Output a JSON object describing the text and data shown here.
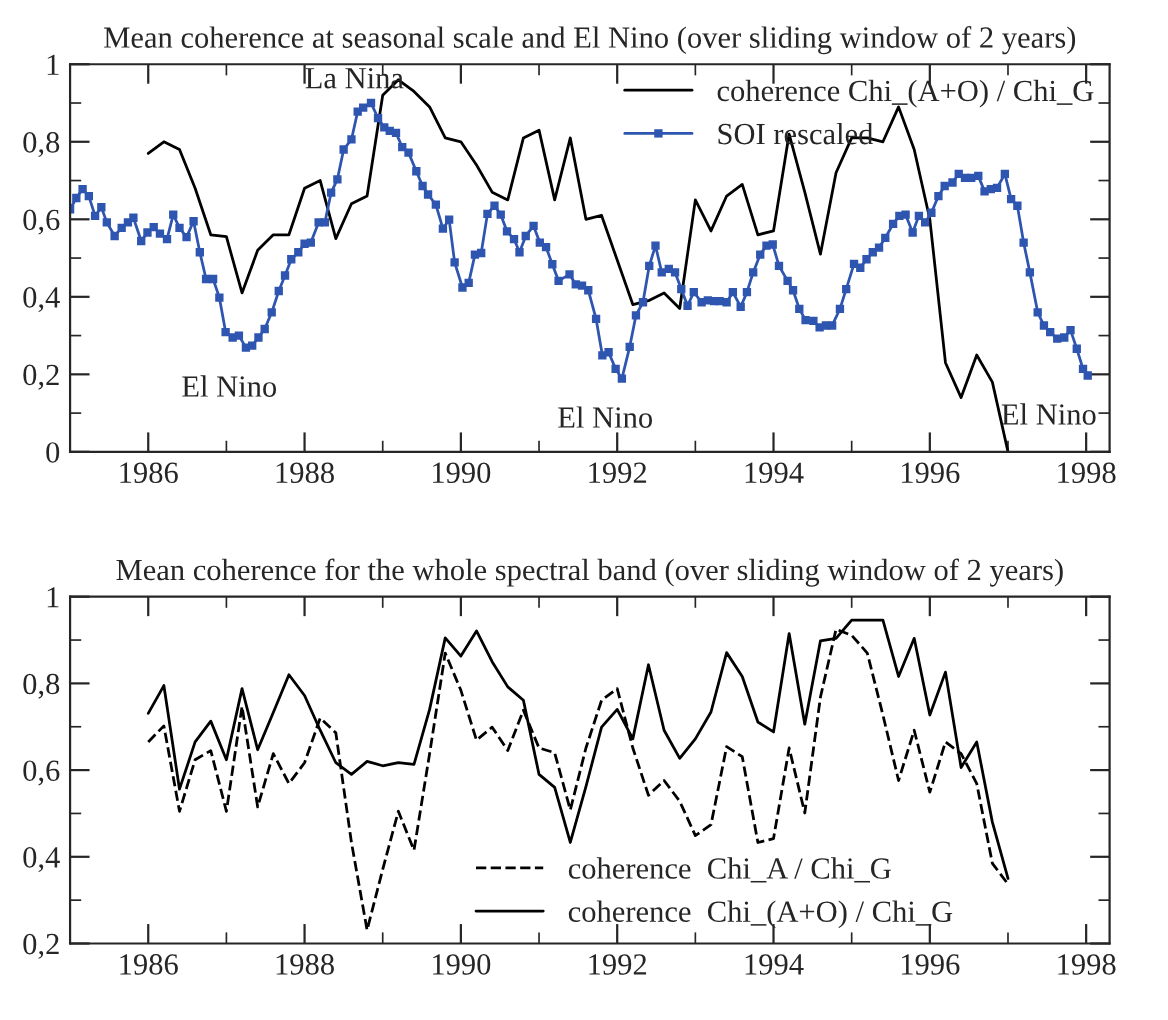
{
  "chart_data": [
    {
      "type": "line",
      "title": "Mean coherence at seasonal scale and El Nino (over sliding window of 2 years)",
      "xlim": [
        1985,
        1998.3
      ],
      "xticks": [
        1986,
        1988,
        1990,
        1992,
        1994,
        1996,
        1998
      ],
      "ylim": [
        0,
        1
      ],
      "yticks": [
        {
          "value": 0,
          "label": "0"
        },
        {
          "value": 0.2,
          "label": "0,2"
        },
        {
          "value": 0.4,
          "label": "0,4"
        },
        {
          "value": 0.6,
          "label": "0,6"
        },
        {
          "value": 0.8,
          "label": "0,8"
        },
        {
          "value": 1,
          "label": "1"
        }
      ],
      "grid": false,
      "legend": "top right",
      "annotations": [
        {
          "text": "La Nina",
          "x": 1988.85,
          "y": 0.9
        },
        {
          "text": "El Nino",
          "x": 1987.25,
          "y": 0.269
        },
        {
          "text": "El Nino",
          "x": 1992.06,
          "y": 0.189
        },
        {
          "text": "El Nino",
          "x": 1998.02,
          "y": 0.197
        }
      ],
      "series": [
        {
          "name": "coherence Chi_(A+O) / Chi_G",
          "color": "#000000",
          "marker": "none",
          "line_style": "solid",
          "x": [
            1986.0,
            1986.2,
            1986.4,
            1986.6,
            1986.8,
            1987.0,
            1987.2,
            1987.4,
            1987.6,
            1987.8,
            1988.0,
            1988.2,
            1988.4,
            1988.6,
            1988.8,
            1989.0,
            1989.2,
            1989.4,
            1989.6,
            1989.8,
            1990.0,
            1990.2,
            1990.4,
            1990.6,
            1990.8,
            1991.0,
            1991.2,
            1991.4,
            1991.6,
            1991.8,
            1992.2,
            1992.4,
            1992.6,
            1992.8,
            1993.0,
            1993.2,
            1993.4,
            1993.6,
            1993.8,
            1994.0,
            1994.2,
            1994.4,
            1994.6,
            1994.8,
            1995.0,
            1995.2,
            1995.4,
            1995.6,
            1995.8,
            1996.0,
            1996.2,
            1996.4,
            1996.6,
            1996.8,
            1997.0
          ],
          "values": [
            0.77,
            0.8,
            0.78,
            0.68,
            0.56,
            0.555,
            0.41,
            0.52,
            0.56,
            0.56,
            0.68,
            0.7,
            0.55,
            0.64,
            0.66,
            0.92,
            0.96,
            0.93,
            0.89,
            0.81,
            0.8,
            0.74,
            0.67,
            0.65,
            0.81,
            0.83,
            0.65,
            0.81,
            0.6,
            0.61,
            0.38,
            0.39,
            0.41,
            0.37,
            0.65,
            0.57,
            0.66,
            0.69,
            0.56,
            0.57,
            0.82,
            0.67,
            0.51,
            0.72,
            0.81,
            0.81,
            0.8,
            0.89,
            0.78,
            0.6,
            0.23,
            0.14,
            0.25,
            0.18,
            0.0
          ]
        },
        {
          "name": "SOI rescaled",
          "color": "#2e55b0",
          "marker": "square",
          "line_style": "solid",
          "x": [
            1985.0,
            1985.08,
            1985.16,
            1985.24,
            1985.32,
            1985.4,
            1985.47,
            1985.57,
            1985.66,
            1985.74,
            1985.81,
            1985.91,
            1985.99,
            1986.07,
            1986.15,
            1986.24,
            1986.32,
            1986.4,
            1986.49,
            1986.58,
            1986.66,
            1986.74,
            1986.83,
            1986.91,
            1986.99,
            1987.08,
            1987.16,
            1987.25,
            1987.33,
            1987.41,
            1987.49,
            1987.58,
            1987.67,
            1987.75,
            1987.83,
            1987.92,
            1988.0,
            1988.08,
            1988.18,
            1988.26,
            1988.34,
            1988.42,
            1988.5,
            1988.6,
            1988.68,
            1988.75,
            1988.85,
            1988.94,
            1989.02,
            1989.09,
            1989.17,
            1989.25,
            1989.33,
            1989.43,
            1989.51,
            1989.58,
            1989.68,
            1989.77,
            1989.85,
            1989.92,
            1990.02,
            1990.1,
            1990.18,
            1990.26,
            1990.34,
            1990.43,
            1990.51,
            1990.59,
            1990.68,
            1990.75,
            1990.83,
            1990.93,
            1991.01,
            1991.09,
            1991.17,
            1991.25,
            1991.39,
            1991.47,
            1991.55,
            1991.63,
            1991.73,
            1991.81,
            1991.89,
            1991.98,
            1992.06,
            1992.16,
            1992.24,
            1992.33,
            1992.41,
            1992.49,
            1992.57,
            1992.66,
            1992.74,
            1992.82,
            1992.9,
            1992.98,
            1993.08,
            1993.16,
            1993.24,
            1993.31,
            1993.4,
            1993.48,
            1993.58,
            1993.66,
            1993.74,
            1993.83,
            1993.91,
            1993.99,
            1994.07,
            1994.18,
            1994.25,
            1994.33,
            1994.41,
            1994.51,
            1994.59,
            1994.67,
            1994.75,
            1994.85,
            1994.93,
            1995.03,
            1995.11,
            1995.19,
            1995.27,
            1995.35,
            1995.43,
            1995.53,
            1995.61,
            1995.69,
            1995.78,
            1995.86,
            1995.94,
            1996.02,
            1996.11,
            1996.19,
            1996.29,
            1996.37,
            1996.45,
            1996.53,
            1996.62,
            1996.7,
            1996.78,
            1996.86,
            1996.96,
            1997.04,
            1997.12,
            1997.2,
            1997.28,
            1997.38,
            1997.46,
            1997.54,
            1997.63,
            1997.72,
            1997.8,
            1997.88,
            1997.96,
            1998.02
          ],
          "values": [
            0.626,
            0.655,
            0.678,
            0.66,
            0.609,
            0.631,
            0.592,
            0.557,
            0.578,
            0.592,
            0.604,
            0.544,
            0.566,
            0.58,
            0.563,
            0.549,
            0.612,
            0.578,
            0.554,
            0.595,
            0.515,
            0.446,
            0.446,
            0.398,
            0.309,
            0.295,
            0.3,
            0.269,
            0.274,
            0.295,
            0.317,
            0.36,
            0.415,
            0.455,
            0.497,
            0.515,
            0.537,
            0.54,
            0.592,
            0.592,
            0.669,
            0.703,
            0.78,
            0.806,
            0.878,
            0.888,
            0.9,
            0.861,
            0.837,
            0.828,
            0.823,
            0.786,
            0.772,
            0.724,
            0.686,
            0.664,
            0.638,
            0.576,
            0.599,
            0.489,
            0.424,
            0.436,
            0.509,
            0.513,
            0.614,
            0.635,
            0.612,
            0.569,
            0.549,
            0.515,
            0.557,
            0.583,
            0.54,
            0.528,
            0.484,
            0.441,
            0.458,
            0.432,
            0.429,
            0.417,
            0.343,
            0.249,
            0.257,
            0.214,
            0.189,
            0.271,
            0.352,
            0.386,
            0.48,
            0.532,
            0.463,
            0.472,
            0.463,
            0.42,
            0.377,
            0.412,
            0.386,
            0.391,
            0.389,
            0.389,
            0.386,
            0.412,
            0.374,
            0.412,
            0.463,
            0.509,
            0.532,
            0.535,
            0.48,
            0.441,
            0.417,
            0.369,
            0.34,
            0.338,
            0.321,
            0.326,
            0.326,
            0.369,
            0.42,
            0.485,
            0.475,
            0.497,
            0.515,
            0.527,
            0.552,
            0.588,
            0.609,
            0.612,
            0.566,
            0.609,
            0.592,
            0.617,
            0.66,
            0.686,
            0.695,
            0.717,
            0.707,
            0.707,
            0.712,
            0.672,
            0.678,
            0.681,
            0.717,
            0.652,
            0.635,
            0.54,
            0.463,
            0.36,
            0.326,
            0.309,
            0.292,
            0.295,
            0.314,
            0.266,
            0.214,
            0.197
          ]
        }
      ]
    },
    {
      "type": "line",
      "title": "Mean coherence for the whole spectral band (over sliding window of 2 years)",
      "xlim": [
        1985,
        1998.3
      ],
      "xticks": [
        1986,
        1988,
        1990,
        1992,
        1994,
        1996,
        1998
      ],
      "ylim": [
        0.2,
        1
      ],
      "yticks": [
        {
          "value": 0.2,
          "label": "0,2"
        },
        {
          "value": 0.4,
          "label": "0,4"
        },
        {
          "value": 0.6,
          "label": "0,6"
        },
        {
          "value": 0.8,
          "label": "0,8"
        },
        {
          "value": 1,
          "label": "1"
        }
      ],
      "grid": false,
      "legend": "bottom",
      "series": [
        {
          "name": "coherence  Chi_A / Chi_G",
          "color": "#000000",
          "marker": "none",
          "line_style": "dashed",
          "x": [
            1986.0,
            1986.2,
            1986.4,
            1986.6,
            1986.8,
            1987.0,
            1987.2,
            1987.4,
            1987.6,
            1987.8,
            1988.0,
            1988.2,
            1988.4,
            1988.6,
            1988.8,
            1989.0,
            1989.2,
            1989.4,
            1989.6,
            1989.8,
            1990.0,
            1990.2,
            1990.4,
            1990.6,
            1990.8,
            1991.0,
            1991.2,
            1991.4,
            1991.6,
            1991.8,
            1992.0,
            1992.2,
            1992.4,
            1992.6,
            1992.8,
            1993.0,
            1993.2,
            1993.4,
            1993.6,
            1993.8,
            1994.0,
            1994.2,
            1994.4,
            1994.6,
            1994.8,
            1995.0,
            1995.2,
            1995.4,
            1995.6,
            1995.8,
            1996.0,
            1996.2,
            1996.4,
            1996.6,
            1996.8,
            1997.0
          ],
          "values": [
            0.665,
            0.702,
            0.505,
            0.624,
            0.645,
            0.505,
            0.747,
            0.515,
            0.638,
            0.569,
            0.617,
            0.72,
            0.686,
            0.433,
            0.231,
            0.371,
            0.505,
            0.415,
            0.638,
            0.87,
            0.784,
            0.669,
            0.699,
            0.645,
            0.738,
            0.651,
            0.64,
            0.508,
            0.651,
            0.761,
            0.788,
            0.651,
            0.542,
            0.576,
            0.528,
            0.449,
            0.474,
            0.654,
            0.631,
            0.433,
            0.442,
            0.651,
            0.501,
            0.768,
            0.925,
            0.911,
            0.87,
            0.727,
            0.576,
            0.692,
            0.549,
            0.665,
            0.638,
            0.569,
            0.385,
            0.337
          ]
        },
        {
          "name": "coherence  Chi_(A+O) / Chi_G",
          "color": "#000000",
          "marker": "none",
          "line_style": "solid",
          "x": [
            1986.0,
            1986.2,
            1986.4,
            1986.6,
            1986.8,
            1987.0,
            1987.2,
            1987.4,
            1987.6,
            1987.8,
            1988.0,
            1988.2,
            1988.4,
            1988.6,
            1988.8,
            1989.0,
            1989.2,
            1989.4,
            1989.6,
            1989.8,
            1990.0,
            1990.2,
            1990.4,
            1990.6,
            1990.8,
            1991.0,
            1991.2,
            1991.4,
            1991.6,
            1991.8,
            1992.0,
            1992.2,
            1992.4,
            1992.6,
            1992.8,
            1993.0,
            1993.2,
            1993.4,
            1993.6,
            1993.8,
            1994.0,
            1994.2,
            1994.4,
            1994.6,
            1994.8,
            1995.0,
            1995.2,
            1995.4,
            1995.6,
            1995.8,
            1996.0,
            1996.2,
            1996.4,
            1996.6,
            1996.8,
            1997.0
          ],
          "values": [
            0.731,
            0.795,
            0.556,
            0.665,
            0.713,
            0.624,
            0.788,
            0.647,
            0.733,
            0.82,
            0.772,
            0.692,
            0.617,
            0.59,
            0.62,
            0.61,
            0.617,
            0.613,
            0.74,
            0.905,
            0.863,
            0.921,
            0.85,
            0.792,
            0.761,
            0.59,
            0.56,
            0.433,
            0.562,
            0.699,
            0.74,
            0.672,
            0.843,
            0.692,
            0.627,
            0.672,
            0.734,
            0.871,
            0.816,
            0.711,
            0.688,
            0.915,
            0.706,
            0.898,
            0.904,
            0.946,
            0.946,
            0.946,
            0.816,
            0.904,
            0.727,
            0.826,
            0.606,
            0.665,
            0.48,
            0.35
          ]
        }
      ]
    }
  ]
}
